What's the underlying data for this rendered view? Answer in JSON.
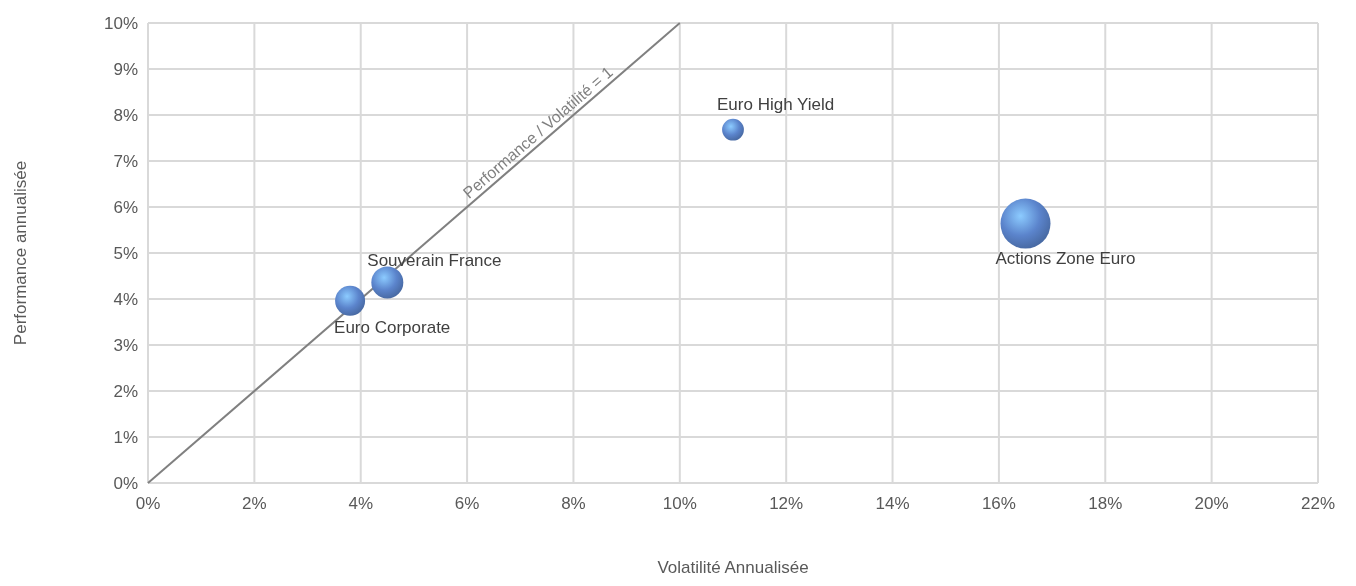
{
  "chart_data": {
    "type": "bubble",
    "xlabel": "Volatilité Annualisée",
    "ylabel": "Performance annualisée",
    "xlim": [
      0,
      22
    ],
    "ylim": [
      0,
      10
    ],
    "xticks": [
      {
        "value": 0,
        "label": "0%"
      },
      {
        "value": 2,
        "label": "2%"
      },
      {
        "value": 4,
        "label": "4%"
      },
      {
        "value": 6,
        "label": "6%"
      },
      {
        "value": 8,
        "label": "8%"
      },
      {
        "value": 10,
        "label": "10%"
      },
      {
        "value": 12,
        "label": "12%"
      },
      {
        "value": 14,
        "label": "14%"
      },
      {
        "value": 16,
        "label": "16%"
      },
      {
        "value": 18,
        "label": "18%"
      },
      {
        "value": 20,
        "label": "20%"
      },
      {
        "value": 22,
        "label": "22%"
      }
    ],
    "yticks": [
      {
        "value": 0,
        "label": "0%"
      },
      {
        "value": 1,
        "label": "1%"
      },
      {
        "value": 2,
        "label": "2%"
      },
      {
        "value": 3,
        "label": "3%"
      },
      {
        "value": 4,
        "label": "4%"
      },
      {
        "value": 5,
        "label": "5%"
      },
      {
        "value": 6,
        "label": "6%"
      },
      {
        "value": 7,
        "label": "7%"
      },
      {
        "value": 8,
        "label": "8%"
      },
      {
        "value": 9,
        "label": "9%"
      },
      {
        "value": 10,
        "label": "10%"
      }
    ],
    "grid": true,
    "series": [
      {
        "type": "line",
        "name": "Performance / Volatilité = 1",
        "color": "#808080",
        "x": [
          0,
          10
        ],
        "values": [
          0,
          10
        ]
      },
      {
        "name": "Euro Corporate",
        "color": "#5b84cc",
        "x": [
          3.8
        ],
        "values": [
          3.96
        ],
        "sizes": [
          0.36
        ]
      },
      {
        "name": "Souverain France",
        "color": "#5b84cc",
        "x": [
          4.5
        ],
        "values": [
          4.36
        ],
        "sizes": [
          0.41
        ]
      },
      {
        "name": "Euro High Yield",
        "color": "#5b84cc",
        "x": [
          11
        ],
        "values": [
          7.68
        ],
        "sizes": [
          0.19
        ]
      },
      {
        "name": "Actions Zone Euro",
        "color": "#5b84cc",
        "x": [
          16.5
        ],
        "values": [
          5.64
        ],
        "sizes": [
          1
        ]
      }
    ]
  }
}
